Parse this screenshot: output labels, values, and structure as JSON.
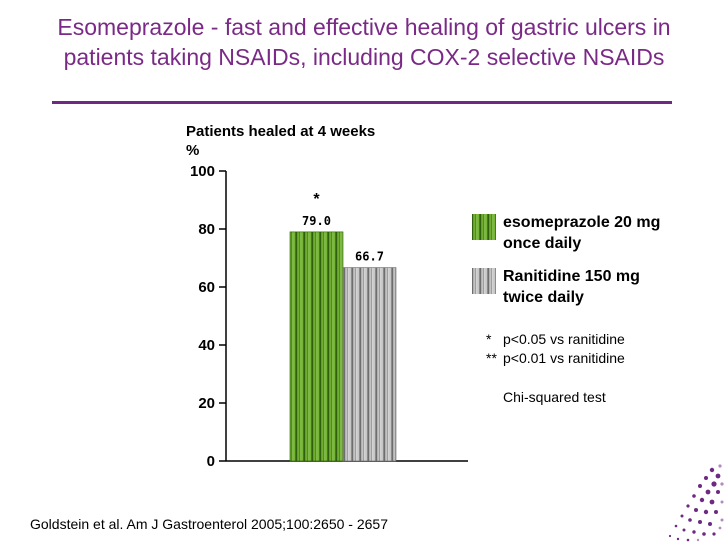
{
  "slide": {
    "title_line1": "Esomeprazole - fast and effective healing of gastric ulcers in",
    "title_line2": "patients taking NSAIDs, including COX-2 selective NSAIDs",
    "source": "Goldstein et al. Am J Gastroenterol 2005;100:2650 - 2657"
  },
  "chart_data": {
    "type": "bar",
    "title": "Patients healed at 4 weeks",
    "ylabel": "%",
    "ylim": [
      0,
      100
    ],
    "yticks": [
      0,
      20,
      40,
      60,
      80,
      100
    ],
    "categories": [
      "esomeprazole 20 mg once daily",
      "Ranitidine 150 mg twice daily"
    ],
    "values": [
      79.0,
      66.7
    ],
    "value_labels": [
      "79.0",
      "66.7"
    ],
    "significance": [
      "*",
      ""
    ],
    "colors": [
      "#4e8a1e",
      "#9a9a9a"
    ]
  },
  "legend": {
    "items": [
      {
        "line1": "esomeprazole 20 mg",
        "line2": "once daily"
      },
      {
        "line1": "Ranitidine 150 mg",
        "line2": "twice daily"
      }
    ],
    "notes": [
      {
        "mark": "*",
        "text": "p<0.05 vs ranitidine"
      },
      {
        "mark": "**",
        "text": "p<0.01 vs ranitidine"
      }
    ],
    "test": "Chi-squared test"
  }
}
